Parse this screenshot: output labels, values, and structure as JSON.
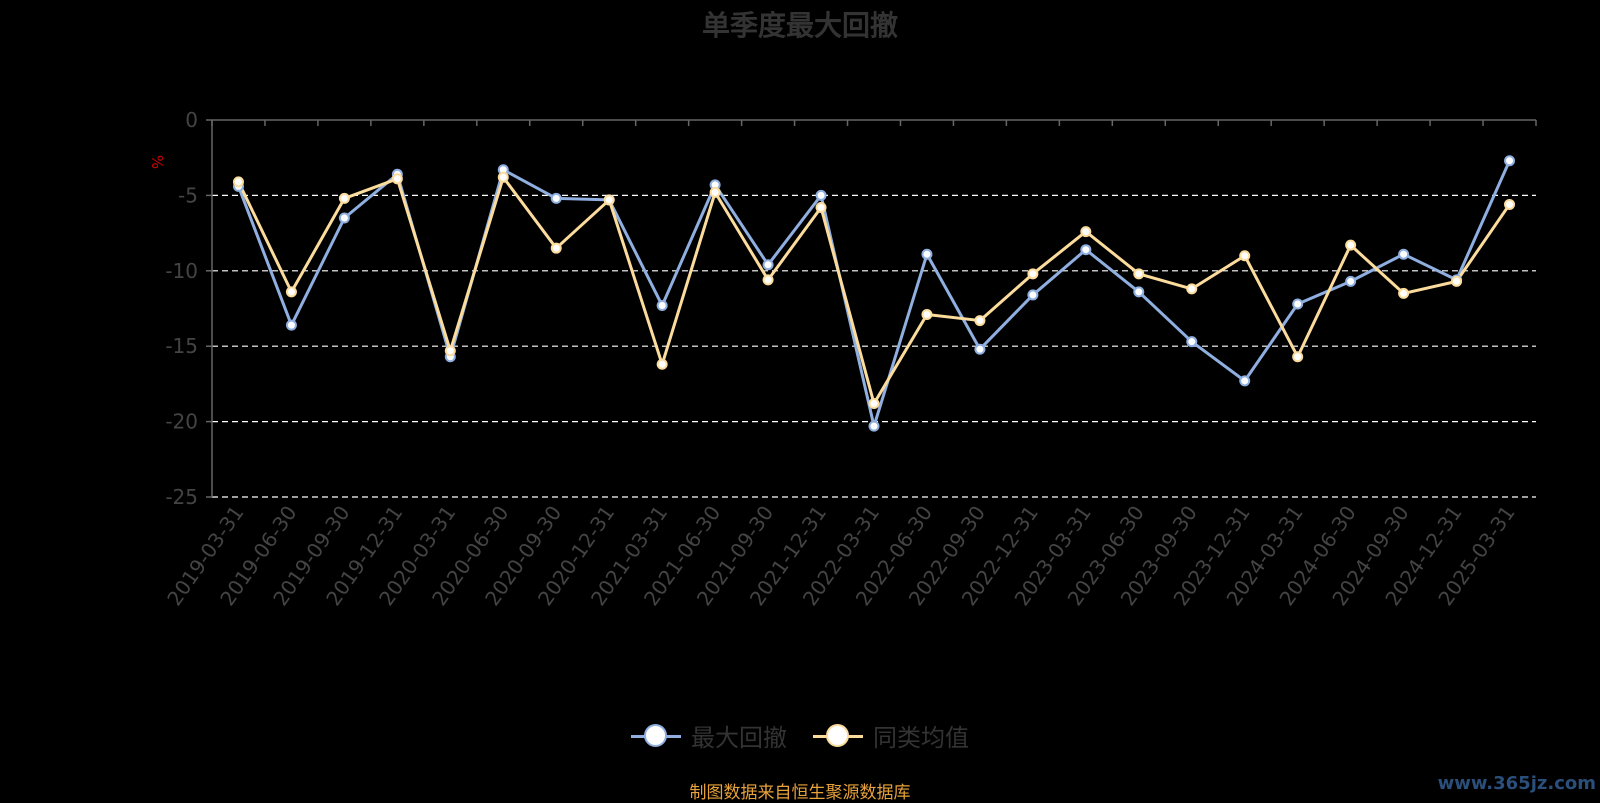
{
  "chart_data": {
    "type": "line",
    "title": "单季度最大回撤",
    "ylabel": "%",
    "xlabel": "",
    "ylim": [
      -25,
      0
    ],
    "yticks": [
      0,
      -5,
      -10,
      -15,
      -20,
      -25
    ],
    "categories": [
      "2019-03-31",
      "2019-06-30",
      "2019-09-30",
      "2019-12-31",
      "2020-03-31",
      "2020-06-30",
      "2020-09-30",
      "2020-12-31",
      "2021-03-31",
      "2021-06-30",
      "2021-09-30",
      "2021-12-31",
      "2022-03-31",
      "2022-06-30",
      "2022-09-30",
      "2022-12-31",
      "2023-03-31",
      "2023-06-30",
      "2023-09-30",
      "2023-12-31",
      "2024-03-31",
      "2024-06-30",
      "2024-09-30",
      "2024-12-31",
      "2025-03-31"
    ],
    "series": [
      {
        "name": "最大回撤",
        "color": "#8fafe0",
        "values": [
          -4.4,
          -13.6,
          -6.5,
          -3.6,
          -15.7,
          -3.3,
          -5.2,
          -5.3,
          -12.3,
          -4.3,
          -9.6,
          -5.0,
          -20.3,
          -8.9,
          -15.2,
          -11.6,
          -8.6,
          -11.4,
          -14.7,
          -17.3,
          -12.2,
          -10.7,
          -8.9,
          -10.6,
          -2.7
        ]
      },
      {
        "name": "同类均值",
        "color": "#fcdc9c",
        "values": [
          -4.1,
          -11.4,
          -5.2,
          -3.9,
          -15.3,
          -3.8,
          -8.5,
          -5.3,
          -16.2,
          -4.8,
          -10.6,
          -5.8,
          -18.8,
          -12.9,
          -13.3,
          -10.2,
          -7.4,
          -10.2,
          -11.2,
          -9.0,
          -15.7,
          -8.3,
          -11.5,
          -10.7,
          -5.6
        ]
      }
    ],
    "grid": true,
    "legend_position": "bottom"
  },
  "footer": {
    "source": "制图数据来自恒生聚源数据库",
    "watermark": "www.365jz.com"
  },
  "colors": {
    "background": "#000000",
    "axis": "#666666",
    "grid": "#ffffff",
    "tick_label": "#444444",
    "unit_label": "#cc0000"
  }
}
